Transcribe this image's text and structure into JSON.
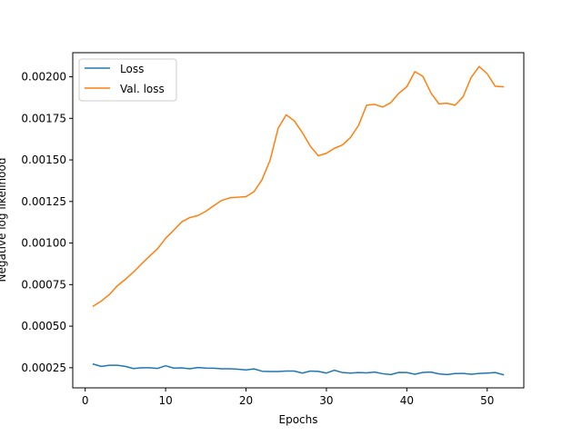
{
  "chart_data": {
    "type": "line",
    "title": "",
    "xlabel": "Epochs",
    "ylabel": "Negative log likelihood",
    "xlim": [
      -1.55,
      54.55
    ],
    "ylim": [
      0.000129,
      0.002145
    ],
    "xticks": [
      0,
      10,
      20,
      30,
      40,
      50
    ],
    "yticks": [
      0.00025,
      0.0005,
      0.00075,
      0.001,
      0.00125,
      0.0015,
      0.00175,
      0.002
    ],
    "ytick_labels": [
      "0.00025",
      "0.00050",
      "0.00075",
      "0.00100",
      "0.00125",
      "0.00150",
      "0.00175",
      "0.00200"
    ],
    "grid": false,
    "legend_position": "upper-left",
    "x": [
      1,
      2,
      3,
      4,
      5,
      6,
      7,
      8,
      9,
      10,
      11,
      12,
      13,
      14,
      15,
      16,
      17,
      18,
      19,
      20,
      21,
      22,
      23,
      24,
      25,
      26,
      27,
      28,
      29,
      30,
      31,
      32,
      33,
      34,
      35,
      36,
      37,
      38,
      39,
      40,
      41,
      42,
      43,
      44,
      45,
      46,
      47,
      48,
      49,
      50,
      51,
      52
    ],
    "series": [
      {
        "name": "Loss",
        "color": "#1f77b4",
        "values": [
          0.000272,
          0.000258,
          0.000265,
          0.000265,
          0.000258,
          0.000245,
          0.00025,
          0.00025,
          0.000246,
          0.000262,
          0.000248,
          0.000249,
          0.000244,
          0.000251,
          0.000248,
          0.000247,
          0.000244,
          0.000244,
          0.000241,
          0.000237,
          0.000243,
          0.000229,
          0.000227,
          0.000227,
          0.00023,
          0.00023,
          0.000218,
          0.00023,
          0.000228,
          0.000218,
          0.000235,
          0.000221,
          0.000218,
          0.000221,
          0.000219,
          0.000224,
          0.000214,
          0.000209,
          0.000222,
          0.000221,
          0.000211,
          0.000222,
          0.000224,
          0.000213,
          0.000209,
          0.000215,
          0.000216,
          0.000211,
          0.000216,
          0.000218,
          0.000221,
          0.000208
        ]
      },
      {
        "name": "Val. loss",
        "color": "#ff7f0e",
        "values": [
          0.000621,
          0.000651,
          0.00069,
          0.000743,
          0.000782,
          0.000825,
          0.000874,
          0.000921,
          0.000966,
          0.001028,
          0.001077,
          0.001127,
          0.001153,
          0.001165,
          0.001191,
          0.001225,
          0.001257,
          0.001272,
          0.001276,
          0.001279,
          0.001309,
          0.001382,
          0.001499,
          0.001691,
          0.001771,
          0.001735,
          0.001665,
          0.001582,
          0.001525,
          0.00154,
          0.00157,
          0.00159,
          0.001635,
          0.001708,
          0.001829,
          0.001834,
          0.001818,
          0.001844,
          0.001901,
          0.00194,
          0.002031,
          0.002003,
          0.001903,
          0.001837,
          0.001841,
          0.001829,
          0.00188,
          0.001996,
          0.002062,
          0.002018,
          0.001943,
          0.00194
        ]
      }
    ]
  }
}
